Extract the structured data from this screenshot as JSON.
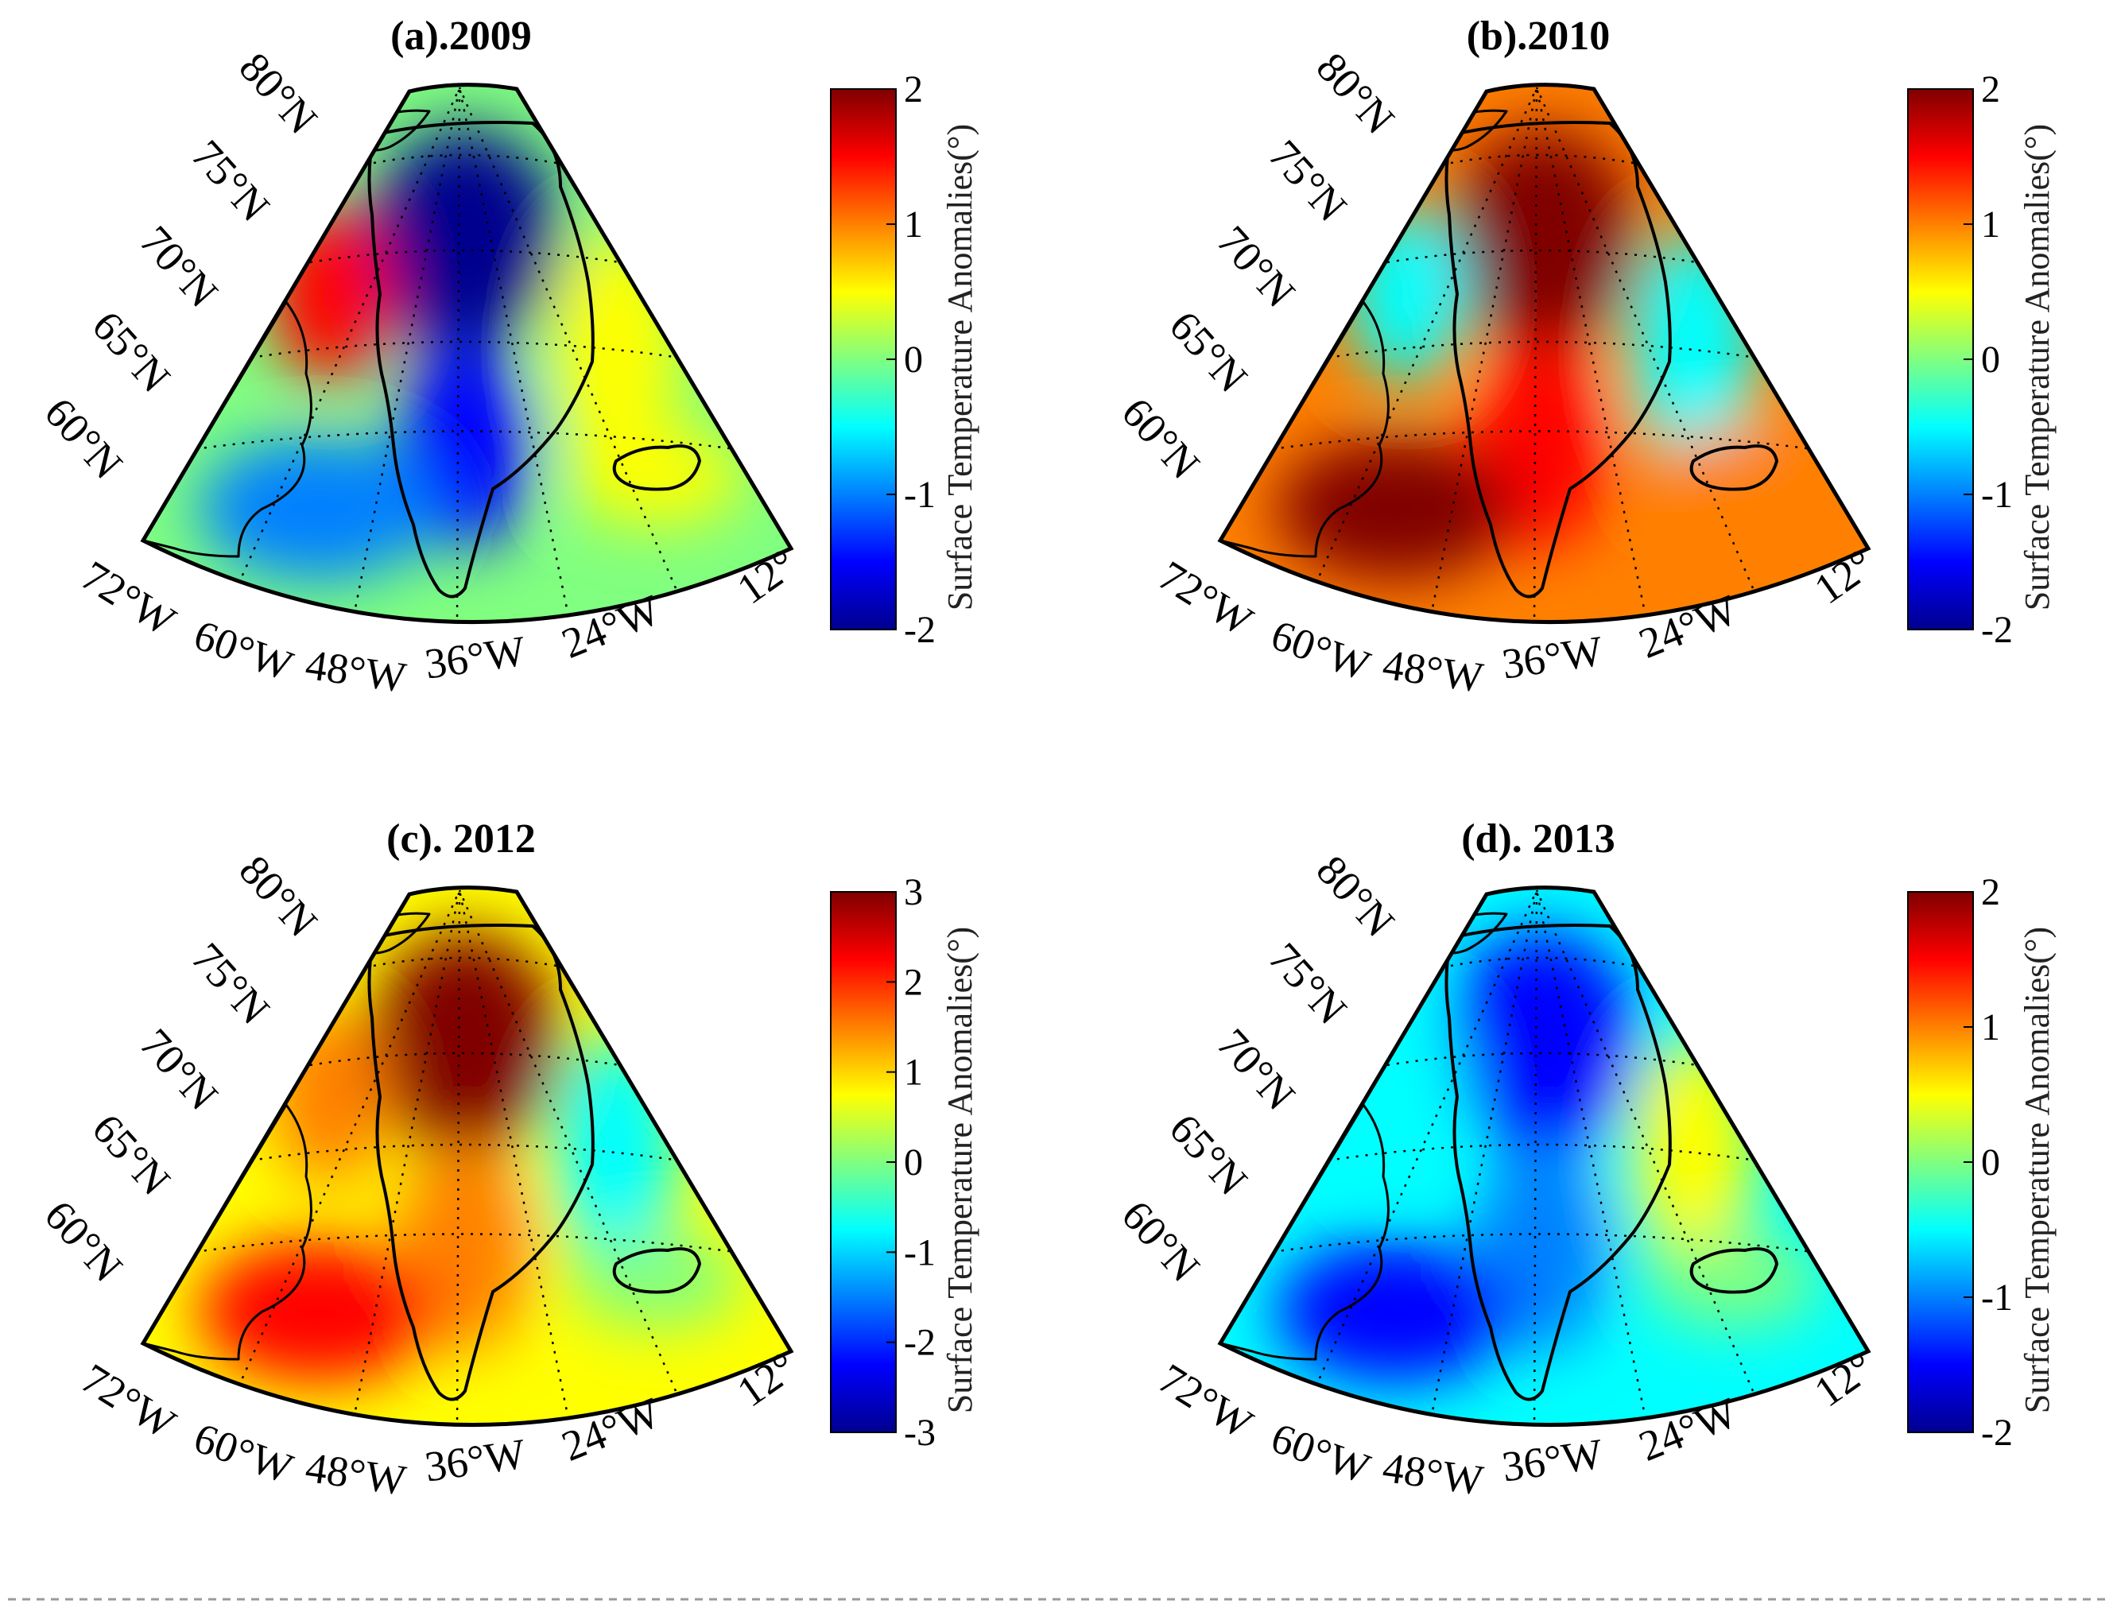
{
  "figure": {
    "colormap": [
      "#00008f",
      "#0000ff",
      "#0080ff",
      "#00ffff",
      "#80ff80",
      "#ffff00",
      "#ff8000",
      "#ff0000",
      "#800000"
    ],
    "land_outline_color": "#000000",
    "grid_color": "#000000"
  },
  "panels": [
    {
      "title": "(a).2009",
      "lat_labels": [
        "80°N",
        "75°N",
        "70°N",
        "65°N",
        "60°N"
      ],
      "lon_labels": [
        "72°W",
        "60°W",
        "48°W",
        "36°W",
        "24°W",
        "12°"
      ],
      "colorbar": {
        "label": "Surface Temperature Anomalies(°)",
        "ticks": [
          "2",
          "1",
          "0",
          "-1",
          "-2"
        ],
        "min": -2,
        "max": 2
      },
      "anomaly_pattern": {
        "background": -0.1,
        "icesheet_north": -2.0,
        "icesheet_south": -1.3,
        "baffin_bay": 1.6,
        "labrador": -0.8,
        "east_coast": 0.3,
        "iceland": 0.6
      }
    },
    {
      "title": "(b).2010",
      "lat_labels": [
        "80°N",
        "75°N",
        "70°N",
        "65°N",
        "60°N"
      ],
      "lon_labels": [
        "72°W",
        "60°W",
        "48°W",
        "36°W",
        "24°W",
        "12°"
      ],
      "colorbar": {
        "label": "Surface Temperature Anomalies(°)",
        "ticks": [
          "2",
          "1",
          "0",
          "-1",
          "-2"
        ],
        "min": -2,
        "max": 2
      },
      "anomaly_pattern": {
        "background": 1.0,
        "icesheet_north": 1.8,
        "icesheet_south": 1.7,
        "baffin_bay": -0.3,
        "labrador": 1.9,
        "east_coast": -0.4,
        "iceland": 0.9
      }
    },
    {
      "title": "(c). 2012",
      "lat_labels": [
        "80°N",
        "75°N",
        "70°N",
        "65°N",
        "60°N"
      ],
      "lon_labels": [
        "72°W",
        "60°W",
        "48°W",
        "36°W",
        "24°W",
        "12°"
      ],
      "colorbar": {
        "label": "Surface Temperature Anomalies(°)",
        "ticks": [
          "3",
          "2",
          "1",
          "0",
          "-1",
          "-2",
          "-3"
        ],
        "min": -3,
        "max": 3
      },
      "anomaly_pattern": {
        "background": 1.1,
        "icesheet_north": 3.0,
        "icesheet_south": 1.6,
        "baffin_bay": 1.6,
        "labrador": 2.2,
        "east_coast": -0.6,
        "iceland": 0.0
      }
    },
    {
      "title": "(d). 2013",
      "lat_labels": [
        "80°N",
        "75°N",
        "70°N",
        "65°N",
        "60°N"
      ],
      "lon_labels": [
        "72°W",
        "60°W",
        "48°W",
        "36°W",
        "24°W",
        "12°"
      ],
      "colorbar": {
        "label": "Surface Temperature Anomalies(°)",
        "ticks": [
          "2",
          "1",
          "0",
          "-1",
          "-2"
        ],
        "min": -2,
        "max": 2
      },
      "anomaly_pattern": {
        "background": -0.6,
        "icesheet_north": -1.5,
        "icesheet_south": -1.1,
        "baffin_bay": -0.4,
        "labrador": -1.6,
        "east_coast": 0.5,
        "iceland": -0.2
      }
    }
  ]
}
